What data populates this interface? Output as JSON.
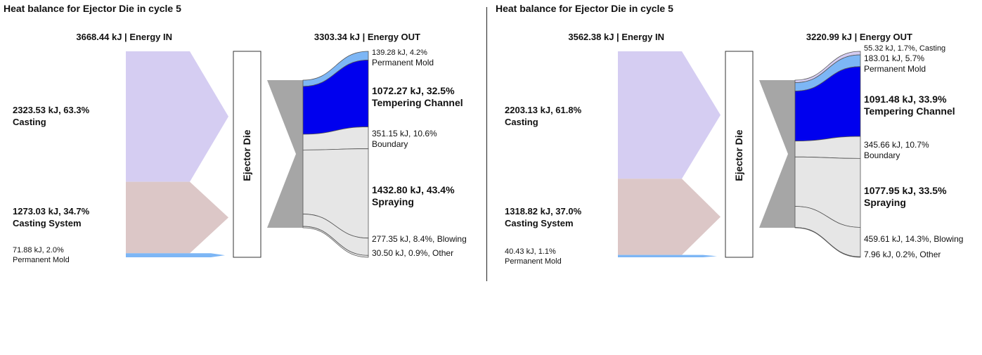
{
  "chart_data": [
    {
      "type": "sankey",
      "title": "Heat balance for Ejector Die in cycle 5",
      "center_label": "Ejector Die",
      "energy_in": {
        "value": "3668.44 kJ",
        "label": "Energy IN"
      },
      "energy_out": {
        "value": "3303.34 kJ",
        "label": "Energy OUT"
      },
      "inputs": [
        {
          "name": "Casting",
          "value_kj": 2323.53,
          "text": "2323.53 kJ, 63.3%",
          "label": "Casting",
          "color": "#d5cdf2"
        },
        {
          "name": "Casting System",
          "value_kj": 1273.03,
          "text": "1273.03 kJ, 34.7%",
          "label": "Casting System",
          "color": "#dcc7c7"
        },
        {
          "name": "Permanent Mold",
          "value_kj": 71.88,
          "text": "71.88 kJ, 2.0%",
          "label": "Permanent Mold",
          "color": "#7db6f5"
        }
      ],
      "outputs": [
        {
          "name": "Permanent Mold",
          "value_kj": 139.28,
          "text": "139.28 kJ, 4.2%",
          "label": "Permanent Mold",
          "color": "#7db6f5"
        },
        {
          "name": "Tempering Channel",
          "value_kj": 1072.27,
          "text": "1072.27 kJ, 32.5%",
          "label": "Tempering Channel",
          "color": "#0000ee"
        },
        {
          "name": "Boundary",
          "value_kj": 351.15,
          "text": "351.15 kJ, 10.6%",
          "label": "Boundary",
          "color": "#e6e6e6"
        },
        {
          "name": "Spraying",
          "value_kj": 1432.8,
          "text": "1432.80 kJ, 43.4%",
          "label": "Spraying",
          "color": "#e6e6e6"
        },
        {
          "name": "Blowing",
          "value_kj": 277.35,
          "text": "277.35 kJ, 8.4%, Blowing",
          "label": "",
          "color": "#e6e6e6"
        },
        {
          "name": "Other",
          "value_kj": 30.5,
          "text": "30.50 kJ, 0.9%, Other",
          "label": "",
          "color": "#e6e6e6"
        }
      ]
    },
    {
      "type": "sankey",
      "title": "Heat balance for Ejector Die in cycle 5",
      "center_label": "Ejector Die",
      "energy_in": {
        "value": "3562.38 kJ",
        "label": "Energy IN"
      },
      "energy_out": {
        "value": "3220.99 kJ",
        "label": "Energy OUT"
      },
      "inputs": [
        {
          "name": "Casting",
          "value_kj": 2203.13,
          "text": "2203.13 kJ, 61.8%",
          "label": "Casting",
          "color": "#d5cdf2"
        },
        {
          "name": "Casting System",
          "value_kj": 1318.82,
          "text": "1318.82 kJ, 37.0%",
          "label": "Casting System",
          "color": "#dcc7c7"
        },
        {
          "name": "Permanent Mold",
          "value_kj": 40.43,
          "text": "40.43 kJ, 1.1%",
          "label": "Permanent Mold",
          "color": "#7db6f5"
        }
      ],
      "outputs": [
        {
          "name": "Casting",
          "value_kj": 55.32,
          "text": "55.32 kJ, 1.7%, Casting",
          "label": "",
          "color": "#d5cdf2"
        },
        {
          "name": "Permanent Mold",
          "value_kj": 183.01,
          "text": "183.01 kJ, 5.7%",
          "label": "Permanent Mold",
          "color": "#7db6f5"
        },
        {
          "name": "Tempering Channel",
          "value_kj": 1091.48,
          "text": "1091.48 kJ, 33.9%",
          "label": "Tempering Channel",
          "color": "#0000ee"
        },
        {
          "name": "Boundary",
          "value_kj": 345.66,
          "text": "345.66 kJ, 10.7%",
          "label": "Boundary",
          "color": "#e6e6e6"
        },
        {
          "name": "Spraying",
          "value_kj": 1077.95,
          "text": "1077.95 kJ, 33.5%",
          "label": "Spraying",
          "color": "#e6e6e6"
        },
        {
          "name": "Blowing",
          "value_kj": 459.61,
          "text": "459.61 kJ, 14.3%, Blowing",
          "label": "",
          "color": "#e6e6e6"
        },
        {
          "name": "Other",
          "value_kj": 7.96,
          "text": "7.96 kJ, 0.2%, Other",
          "label": "",
          "color": "#e6e6e6"
        }
      ]
    }
  ]
}
